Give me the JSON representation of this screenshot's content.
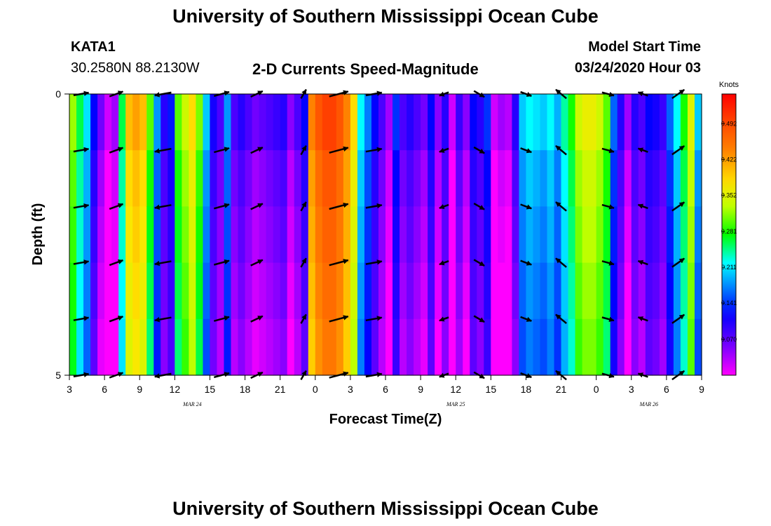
{
  "page": {
    "title": "University of Southern Mississippi Ocean Cube",
    "footer_title": "University of Southern Mississippi Ocean Cube",
    "station": "KATA1",
    "location": "30.2580N 88.2130W",
    "plot_title": "2-D Currents Speed-Magnitude",
    "model_start_label": "Model Start Time",
    "model_start_value": "03/24/2020 Hour 03"
  },
  "chart_data": {
    "type": "heatmap",
    "title": "2-D Currents Speed-Magnitude",
    "xlabel": "Forecast Time(Z)",
    "ylabel": "Depth (ft)",
    "x_range": [
      3,
      57
    ],
    "y_range": [
      0,
      5
    ],
    "x_ticks": [
      {
        "x": 3,
        "label": "3"
      },
      {
        "x": 6,
        "label": "6"
      },
      {
        "x": 9,
        "label": "9"
      },
      {
        "x": 12,
        "label": "12"
      },
      {
        "x": 15,
        "label": "15"
      },
      {
        "x": 18,
        "label": "18"
      },
      {
        "x": 21,
        "label": "21"
      },
      {
        "x": 24,
        "label": "0"
      },
      {
        "x": 27,
        "label": "3"
      },
      {
        "x": 30,
        "label": "6"
      },
      {
        "x": 33,
        "label": "9"
      },
      {
        "x": 36,
        "label": "12"
      },
      {
        "x": 39,
        "label": "15"
      },
      {
        "x": 42,
        "label": "18"
      },
      {
        "x": 45,
        "label": "21"
      },
      {
        "x": 48,
        "label": "0"
      },
      {
        "x": 51,
        "label": "3"
      },
      {
        "x": 54,
        "label": "6"
      },
      {
        "x": 57,
        "label": "9"
      }
    ],
    "y_ticks": [
      {
        "y": 0,
        "label": "0"
      },
      {
        "y": 5,
        "label": "5"
      }
    ],
    "date_labels": [
      {
        "x": 13.5,
        "label": "MAR 24"
      },
      {
        "x": 36,
        "label": "MAR 25"
      },
      {
        "x": 52.5,
        "label": "MAR 26"
      }
    ],
    "colorbar": {
      "label": "Knots",
      "min": 0.0,
      "max": 0.55,
      "ticks": [
        0.07,
        0.141,
        0.211,
        0.281,
        0.352,
        0.422,
        0.492
      ],
      "tick_labels": [
        "0.070",
        "0.141",
        "0.211",
        "0.281",
        "0.352",
        "0.422",
        "0.492"
      ]
    },
    "column_speeds": [
      0.32,
      0.26,
      0.21,
      0.12,
      0.06,
      0.02,
      0.04,
      0.26,
      0.4,
      0.42,
      0.4,
      0.3,
      0.18,
      0.1,
      0.13,
      0.3,
      0.34,
      0.38,
      0.31,
      0.2,
      0.11,
      0.08,
      0.18,
      0.08,
      0.1,
      0.08,
      0.06,
      0.07,
      0.08,
      0.09,
      0.1,
      0.05,
      0.08,
      0.12,
      0.44,
      0.48,
      0.5,
      0.5,
      0.48,
      0.44,
      0.38,
      0.22,
      0.17,
      0.12,
      0.08,
      0.04,
      0.14,
      0.08,
      0.1,
      0.08,
      0.06,
      0.12,
      0.05,
      0.1,
      0.02,
      0.09,
      0.05,
      0.12,
      0.1,
      0.14,
      0.02,
      0.04,
      0.03,
      0.1,
      0.2,
      0.22,
      0.21,
      0.2,
      0.22,
      0.19,
      0.24,
      0.28,
      0.34,
      0.36,
      0.36,
      0.34,
      0.3,
      0.16,
      0.1,
      0.04,
      0.1,
      0.08,
      0.12,
      0.11,
      0.09,
      0.16,
      0.22,
      0.28,
      0.35,
      0.2
    ],
    "depth_deltas": [
      0.0,
      -0.02,
      -0.03,
      -0.04,
      -0.05
    ],
    "arrow_layers": [
      0,
      1,
      2,
      3,
      4,
      5
    ],
    "arrow_times": [
      4,
      7,
      11,
      16,
      19,
      23,
      26,
      29,
      35,
      38,
      42,
      45,
      49,
      52,
      55
    ],
    "arrow_directions_deg": [
      10,
      20,
      190,
      15,
      25,
      60,
      15,
      10,
      200,
      330,
      340,
      140,
      345,
      160,
      35
    ],
    "arrow_speeds": [
      0.3,
      0.26,
      0.35,
      0.31,
      0.22,
      0.12,
      0.45,
      0.33,
      0.1,
      0.18,
      0.17,
      0.24,
      0.19,
      0.12,
      0.28
    ]
  }
}
